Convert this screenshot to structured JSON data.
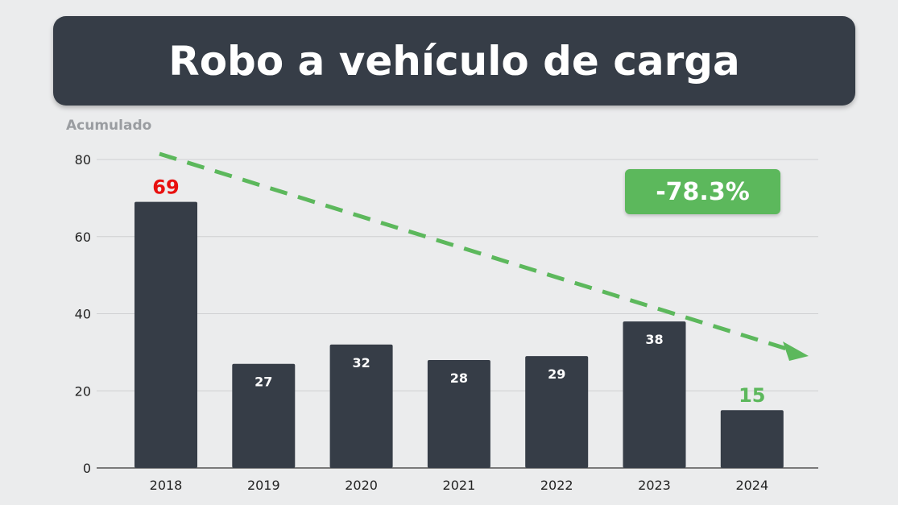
{
  "header": {
    "title": "Robo a vehículo de carga"
  },
  "badge": {
    "text": "-78.3%",
    "color": "#5cb85c"
  },
  "chart_data": {
    "type": "bar",
    "title": "Robo a vehículo de carga",
    "ylabel": "Acumulado",
    "xlabel": "",
    "categories": [
      "2018",
      "2019",
      "2020",
      "2021",
      "2022",
      "2023",
      "2024"
    ],
    "values": [
      69,
      27,
      32,
      28,
      29,
      38,
      15
    ],
    "ylim": [
      0,
      80
    ],
    "yticks": [
      0,
      20,
      40,
      60,
      80
    ],
    "grid": true,
    "bar_color": "#363d47",
    "highlight": {
      "2018": "#e8100f",
      "2024": "#5cb85c"
    },
    "trend_arrow": {
      "color": "#5cb85c",
      "style": "dashed",
      "direction": "down"
    }
  }
}
